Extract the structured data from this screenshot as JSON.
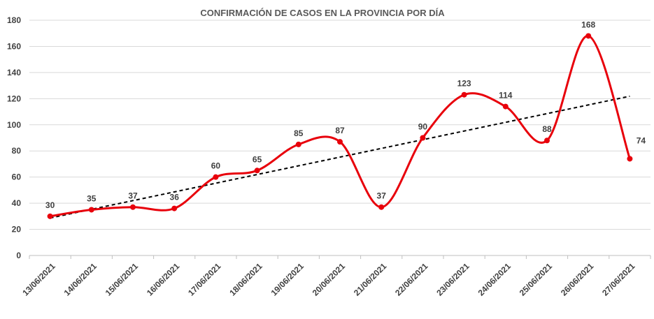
{
  "chart_data": {
    "type": "line",
    "title": "CONFIRMACIÓN  DE CASOS  EN LA PROVINCIA  POR DÍA",
    "xlabel": "",
    "ylabel": "",
    "ylim": [
      0,
      180
    ],
    "yticks": [
      0,
      20,
      40,
      60,
      80,
      100,
      120,
      140,
      160,
      180
    ],
    "grid": true,
    "legend": "none",
    "categories": [
      "13/06/2021",
      "14/06/2021",
      "15/06/2021",
      "16/06/2021",
      "17/06/2021",
      "18/06/2021",
      "19/06/2021",
      "20/06/2021",
      "21/06/2021",
      "22/06/2021",
      "23/06/2021",
      "24/06/2021",
      "25/06/2021",
      "26/06/2021",
      "27/06/2021"
    ],
    "series": [
      {
        "name": "Casos",
        "color": "#e8000b",
        "smooth": true,
        "values": [
          30,
          35,
          37,
          36,
          60,
          65,
          85,
          87,
          37,
          90,
          123,
          114,
          88,
          168,
          74
        ]
      }
    ],
    "trendline": {
      "type": "linear",
      "style": "dashed",
      "color": "#000000"
    }
  }
}
